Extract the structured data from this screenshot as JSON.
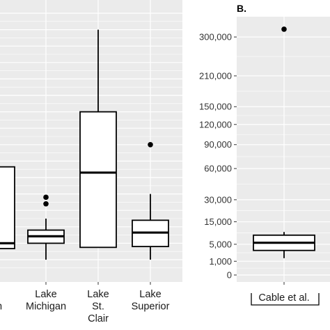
{
  "colors": {
    "panel_bg": "#ebebeb",
    "grid": "#ffffff",
    "box_fill": "#ffffff",
    "stroke": "#000000"
  },
  "chart_data": [
    {
      "type": "box",
      "panel_label": "",
      "grid": true,
      "categories": [
        "Lake Huron",
        "Lake Michigan",
        "Lake St. Clair",
        "Lake Superior"
      ],
      "category_label_lines": [
        [
          "e",
          "on"
        ],
        [
          "Lake",
          "Michigan"
        ],
        [
          "Lake",
          "St.",
          "Clair"
        ],
        [
          "Lake",
          "Superior"
        ]
      ],
      "boxes": [
        {
          "name": "Lake Huron",
          "whisker_low": 0.5,
          "q1": 1.35,
          "median": 2.0,
          "q3": 11.3,
          "whisker_high": 13.0,
          "outliers": []
        },
        {
          "name": "Lake Michigan",
          "whisker_low": 0.0,
          "q1": 2.0,
          "median": 2.85,
          "q3": 3.6,
          "whisker_high": 5.0,
          "outliers": [
            6.8,
            7.6
          ]
        },
        {
          "name": "Lake St. Clair",
          "whisker_low": 1.5,
          "q1": 1.5,
          "median": 10.6,
          "q3": 18.0,
          "whisker_high": 28.0,
          "outliers": []
        },
        {
          "name": "Lake Superior",
          "whisker_low": 0.0,
          "q1": 1.6,
          "median": 3.3,
          "q3": 4.8,
          "whisker_high": 8.0,
          "outliers": [
            14.0
          ]
        }
      ]
    },
    {
      "type": "box",
      "panel_label": "B.",
      "grid": true,
      "yscale": "sqrt",
      "yticks": [
        0,
        1000,
        5000,
        15000,
        30000,
        60000,
        90000,
        120000,
        150000,
        210000,
        300000
      ],
      "ytick_labels": [
        "0",
        "1,000",
        "5,000",
        "15,000",
        "30,000",
        "60,000",
        "90,000",
        "120,000",
        "150,000",
        "210,000",
        "300,000"
      ],
      "categories": [
        "Cable et al."
      ],
      "boxes": [
        {
          "name": "Cable et al.",
          "whisker_low": 1500,
          "q1": 3200,
          "median": 5500,
          "q3": 8400,
          "whisker_high": 9800,
          "outliers": [
            320000
          ]
        }
      ]
    }
  ]
}
